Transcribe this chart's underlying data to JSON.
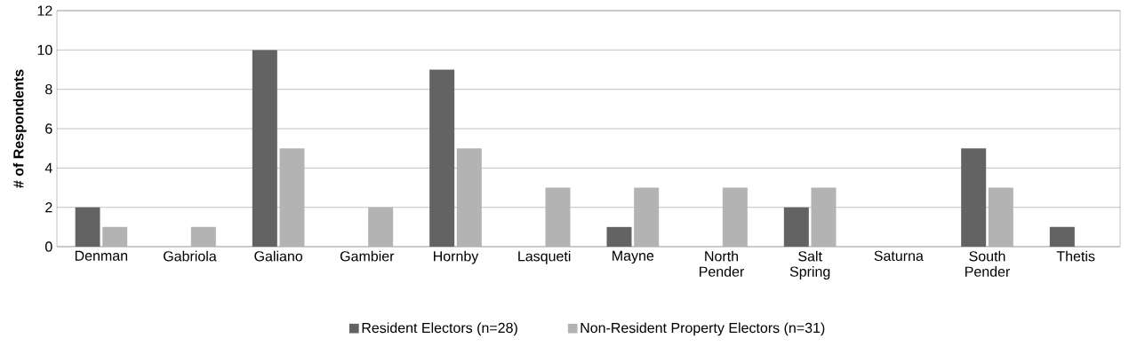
{
  "chart_data": {
    "type": "bar",
    "ylabel": "# of Respondents",
    "categories": [
      "Denman",
      "Gabriola",
      "Galiano",
      "Gambier",
      "Hornby",
      "Lasqueti",
      "Mayne",
      "North Pender",
      "Salt Spring",
      "Saturna",
      "South Pender",
      "Thetis"
    ],
    "series": [
      {
        "name": "Resident Electors (n=28)",
        "color": "#636363",
        "values": [
          2,
          0,
          10,
          0,
          9,
          0,
          1,
          0,
          2,
          0,
          5,
          1
        ]
      },
      {
        "name": "Non-Resident Property Electors (n=31)",
        "color": "#b3b3b3",
        "values": [
          1,
          1,
          5,
          2,
          5,
          3,
          3,
          3,
          3,
          0,
          3,
          0
        ]
      }
    ],
    "ylim": [
      0,
      12
    ],
    "yticks": [
      0,
      2,
      4,
      6,
      8,
      10,
      12
    ],
    "grid": "y",
    "legend": "bottom"
  }
}
